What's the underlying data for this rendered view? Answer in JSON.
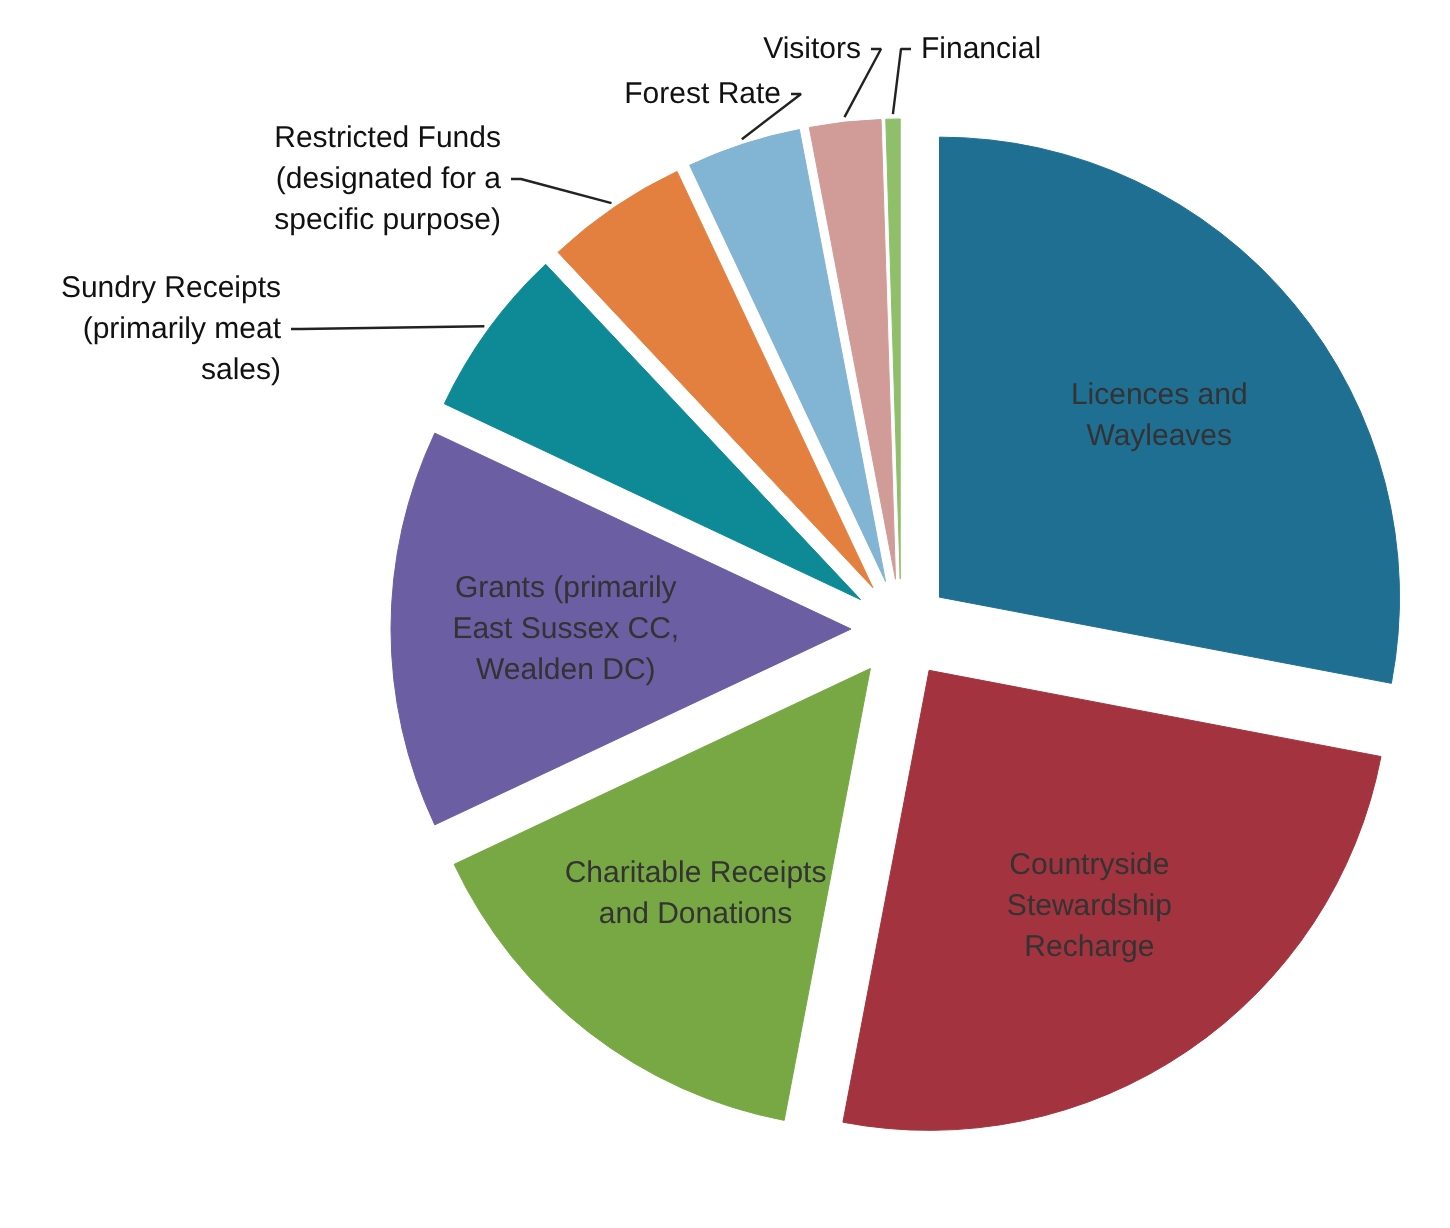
{
  "chart_data": {
    "type": "pie",
    "categories": [
      "Licences and Wayleaves",
      "Countryside Stewardship Recharge",
      "Charitable Receipts and Donations",
      "Grants (primarily East Sussex CC, Wealden DC)",
      "Sundry Receipts (primarily meat sales)",
      "Restricted Funds (designated for a specific purpose)",
      "Forest Rate",
      "Visitors",
      "Financial"
    ],
    "values": [
      28,
      25,
      15,
      14,
      6,
      5,
      4,
      2.5,
      0.5
    ],
    "colors": [
      "#1f6f93",
      "#a3343f",
      "#77a843",
      "#6b5ea3",
      "#0e8a96",
      "#e4803f",
      "#82b4d3",
      "#d19c98",
      "#8fbf6a"
    ]
  }
}
